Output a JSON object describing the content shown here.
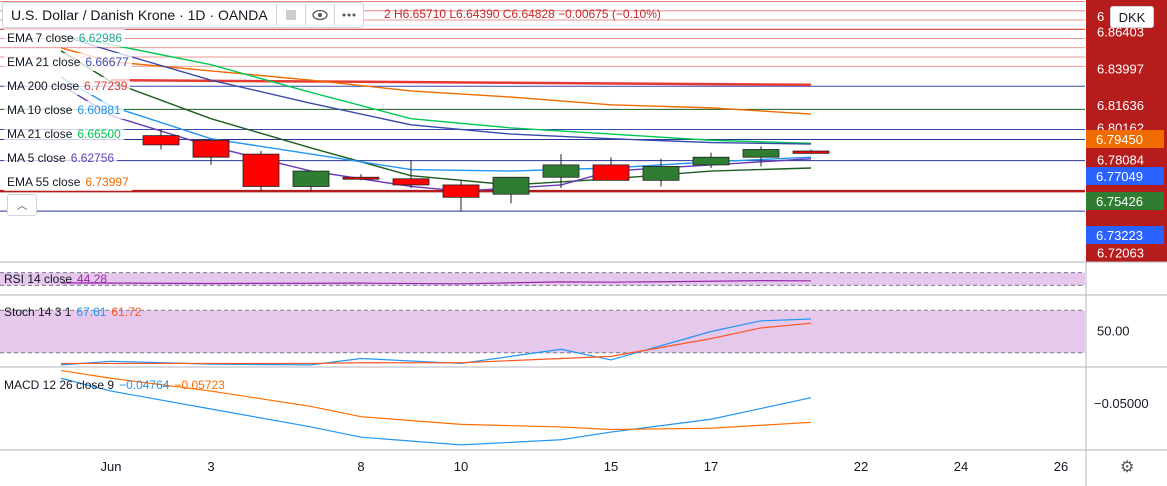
{
  "header": {
    "symbol_title": "U.S. Dollar / Danish Krone · 1D · OANDA",
    "ohlc_text": "2  H6.65710  L6.64390  C6.64828  −0.00675 (−0.10%)",
    "currency_button": "DKK",
    "hide_icon": "hide-icon",
    "eye_icon": "eye-icon",
    "more_icon": "more-icon"
  },
  "indicators": [
    {
      "label": "EMA 7 close",
      "value": "6.62986",
      "color": "#26a69a"
    },
    {
      "label": "EMA 21 close",
      "value": "6.66677",
      "color": "#3f51b5"
    },
    {
      "label": "MA 200 close",
      "value": "6.77239",
      "color": "#e53935"
    },
    {
      "label": "MA 10 close",
      "value": "6.60881",
      "color": "#2196f3"
    },
    {
      "label": "MA 21 close",
      "value": "6.66500",
      "color": "#00c853"
    },
    {
      "label": "MA 5 close",
      "value": "6.62756",
      "color": "#673ab7"
    },
    {
      "label": "EMA 55 close",
      "value": "6.73997",
      "color": "#ef6c00"
    }
  ],
  "price_axis": {
    "labels": [
      "6.86403",
      "6.83997",
      "6.81636",
      "6.80162",
      "6.79450",
      "6.78084",
      "6.77049",
      "6.75426",
      "6.73223",
      "6.72063"
    ],
    "top_partial": "6",
    "tags": [
      {
        "value": "6.79450",
        "color": "#ef6c00"
      },
      {
        "value": "6.77049",
        "color": "#2962ff"
      },
      {
        "value": "6.75426",
        "color": "#2e7d32"
      },
      {
        "value": "6.73223",
        "color": "#2962ff"
      }
    ]
  },
  "rsi": {
    "label": "RSI 14 close",
    "value": "44.28",
    "color": "#9c27b0"
  },
  "stoch": {
    "label": "Stoch 14 3 1",
    "k": "67.61",
    "d": "61.72",
    "k_color": "#2196f3",
    "d_color": "#ff5722",
    "axis_label": "50.00"
  },
  "macd": {
    "label": "MACD 12 26 close 9",
    "macd": "−0.04764",
    "signal": "−0.05723",
    "macd_color": "#2196f3",
    "signal_color": "#ff6d00",
    "axis_label": "−0.05000"
  },
  "time_axis": {
    "labels": [
      "Jun",
      "3",
      "8",
      "10",
      "15",
      "17",
      "22",
      "24",
      "26"
    ],
    "label_dates": [
      "2020-06-01",
      "2020-06-03",
      "2020-06-08",
      "2020-06-10",
      "2020-06-15",
      "2020-06-17",
      "2020-06-22",
      "2020-06-24",
      "2020-06-26"
    ],
    "settings_icon": "gear-icon"
  },
  "chart_data": [
    {
      "type": "candlestick",
      "title": "U.S. Dollar / Danish Krone · 1D · OANDA",
      "ylim": [
        6.715,
        6.885
      ],
      "up_color": "#2e7d32",
      "down_color": "#ff0000",
      "candles": [
        {
          "date": "2020-06-02",
          "open": 6.797,
          "high": 6.801,
          "low": 6.788,
          "close": 6.791
        },
        {
          "date": "2020-06-03",
          "open": 6.794,
          "high": 6.794,
          "low": 6.778,
          "close": 6.783
        },
        {
          "date": "2020-06-04",
          "open": 6.785,
          "high": 6.787,
          "low": 6.761,
          "close": 6.764
        },
        {
          "date": "2020-06-05",
          "open": 6.764,
          "high": 6.774,
          "low": 6.761,
          "close": 6.774
        },
        {
          "date": "2020-06-08",
          "open": 6.77,
          "high": 6.772,
          "low": 6.768,
          "close": 6.769
        },
        {
          "date": "2020-06-09",
          "open": 6.769,
          "high": 6.781,
          "low": 6.763,
          "close": 6.765
        },
        {
          "date": "2020-06-10",
          "open": 6.765,
          "high": 6.768,
          "low": 6.748,
          "close": 6.757
        },
        {
          "date": "2020-06-11",
          "open": 6.759,
          "high": 6.77,
          "low": 6.753,
          "close": 6.77
        },
        {
          "date": "2020-06-12",
          "open": 6.77,
          "high": 6.785,
          "low": 6.763,
          "close": 6.778
        },
        {
          "date": "2020-06-15",
          "open": 6.778,
          "high": 6.783,
          "low": 6.768,
          "close": 6.768
        },
        {
          "date": "2020-06-16",
          "open": 6.768,
          "high": 6.782,
          "low": 6.764,
          "close": 6.777
        },
        {
          "date": "2020-06-17",
          "open": 6.778,
          "high": 6.786,
          "low": 6.776,
          "close": 6.783
        },
        {
          "date": "2020-06-18",
          "open": 6.783,
          "high": 6.79,
          "low": 6.777,
          "close": 6.788
        },
        {
          "date": "2020-06-19",
          "open": 6.787,
          "high": 6.788,
          "low": 6.785,
          "close": 6.7855
        }
      ],
      "horizontal_levels": [
        {
          "value": 6.866,
          "color": "#c62828"
        },
        {
          "value": 6.829,
          "color": "#3949ab"
        },
        {
          "value": 6.814,
          "color": "#1b5e20"
        },
        {
          "value": 6.801,
          "color": "#3949ab"
        },
        {
          "value": 6.7945,
          "color": "#283593"
        },
        {
          "value": 6.7808,
          "color": "#283593"
        },
        {
          "value": 6.761,
          "color": "#b71c1c"
        },
        {
          "value": 6.748,
          "color": "#283593"
        }
      ],
      "series": [
        {
          "color": "#e53935",
          "dates": [
            "2020-06-01",
            "2020-06-19"
          ],
          "values": [
            6.833,
            6.83
          ]
        },
        {
          "color": "#ef6c00",
          "dates": [
            "2020-05-29",
            "2020-06-01",
            "2020-06-03",
            "2020-06-05",
            "2020-06-09",
            "2020-06-11",
            "2020-06-15",
            "2020-06-17",
            "2020-06-19"
          ],
          "values": [
            6.854,
            6.845,
            6.839,
            6.833,
            6.826,
            6.822,
            6.817,
            6.815,
            6.811
          ]
        },
        {
          "color": "#00c853",
          "dates": [
            "2020-05-29",
            "2020-06-01",
            "2020-06-03",
            "2020-06-05",
            "2020-06-09",
            "2020-06-11",
            "2020-06-15",
            "2020-06-17",
            "2020-06-19"
          ],
          "values": [
            6.862,
            6.856,
            6.843,
            6.825,
            6.808,
            6.802,
            6.798,
            6.794,
            6.792
          ]
        },
        {
          "color": "#3949ab",
          "dates": [
            "2020-05-29",
            "2020-06-01",
            "2020-06-03",
            "2020-06-05",
            "2020-06-09",
            "2020-06-11",
            "2020-06-15",
            "2020-06-17",
            "2020-06-19"
          ],
          "values": [
            6.862,
            6.852,
            6.833,
            6.818,
            6.804,
            6.798,
            6.795,
            6.7925,
            6.7915
          ]
        },
        {
          "color": "#1b5e20",
          "dates": [
            "2020-05-29",
            "2020-06-01",
            "2020-06-03",
            "2020-06-05",
            "2020-06-09",
            "2020-06-11",
            "2020-06-15",
            "2020-06-17",
            "2020-06-19"
          ],
          "values": [
            6.852,
            6.832,
            6.808,
            6.789,
            6.771,
            6.765,
            6.769,
            6.774,
            6.776
          ]
        },
        {
          "color": "#2196f3",
          "dates": [
            "2020-05-29",
            "2020-06-01",
            "2020-06-03",
            "2020-06-05",
            "2020-06-09",
            "2020-06-11",
            "2020-06-15",
            "2020-06-17",
            "2020-06-19"
          ],
          "values": [
            6.835,
            6.816,
            6.795,
            6.785,
            6.775,
            6.774,
            6.776,
            6.78,
            6.783
          ]
        },
        {
          "color": "#673ab7",
          "dates": [
            "2020-05-29",
            "2020-06-01",
            "2020-06-03",
            "2020-06-05",
            "2020-06-09",
            "2020-06-10",
            "2020-06-12",
            "2020-06-15",
            "2020-06-17",
            "2020-06-19"
          ],
          "values": [
            6.83,
            6.81,
            6.79,
            6.774,
            6.764,
            6.761,
            6.765,
            6.774,
            6.778,
            6.782
          ]
        }
      ]
    },
    {
      "type": "line",
      "title": "RSI 14 close",
      "ylim": [
        0,
        100
      ],
      "x": [
        "2020-05-29",
        "2020-06-03",
        "2020-06-08",
        "2020-06-10",
        "2020-06-12",
        "2020-06-15",
        "2020-06-17",
        "2020-06-18",
        "2020-06-19"
      ],
      "series": [
        {
          "name": "RSI",
          "color": "#9c27b0",
          "values": [
            38,
            36,
            37,
            35,
            41,
            40,
            43,
            45,
            44.28
          ]
        }
      ],
      "bands": [
        30,
        70
      ],
      "band_fill": "#e1bee7"
    },
    {
      "type": "line",
      "title": "Stoch 14 3 1",
      "ylim": [
        0,
        100
      ],
      "x": [
        "2020-05-29",
        "2020-06-01",
        "2020-06-03",
        "2020-06-05",
        "2020-06-08",
        "2020-06-10",
        "2020-06-12",
        "2020-06-15",
        "2020-06-17",
        "2020-06-18",
        "2020-06-19"
      ],
      "series": [
        {
          "name": "%K",
          "color": "#2196f3",
          "values": [
            3,
            8,
            4,
            3,
            12,
            5,
            25,
            10,
            50,
            65,
            67.61
          ]
        },
        {
          "name": "%D",
          "color": "#ff5722",
          "values": [
            5,
            5,
            5,
            5,
            6,
            6,
            12,
            15,
            40,
            55,
            61.72
          ]
        }
      ],
      "bands": [
        20,
        80
      ],
      "band_fill": "#e1bee7"
    },
    {
      "type": "line",
      "title": "MACD 12 26 close 9",
      "ylim": [
        -0.068,
        -0.036
      ],
      "x": [
        "2020-05-29",
        "2020-06-01",
        "2020-06-03",
        "2020-06-05",
        "2020-06-08",
        "2020-06-10",
        "2020-06-12",
        "2020-06-15",
        "2020-06-17",
        "2020-06-19"
      ],
      "series": [
        {
          "name": "MACD",
          "color": "#2196f3",
          "values": [
            -0.04,
            -0.045,
            -0.052,
            -0.059,
            -0.063,
            -0.066,
            -0.064,
            -0.061,
            -0.056,
            -0.0476
          ]
        },
        {
          "name": "Signal",
          "color": "#ff6d00",
          "values": [
            -0.037,
            -0.04,
            -0.045,
            -0.051,
            -0.055,
            -0.058,
            -0.059,
            -0.06,
            -0.0595,
            -0.0572
          ]
        }
      ]
    }
  ]
}
